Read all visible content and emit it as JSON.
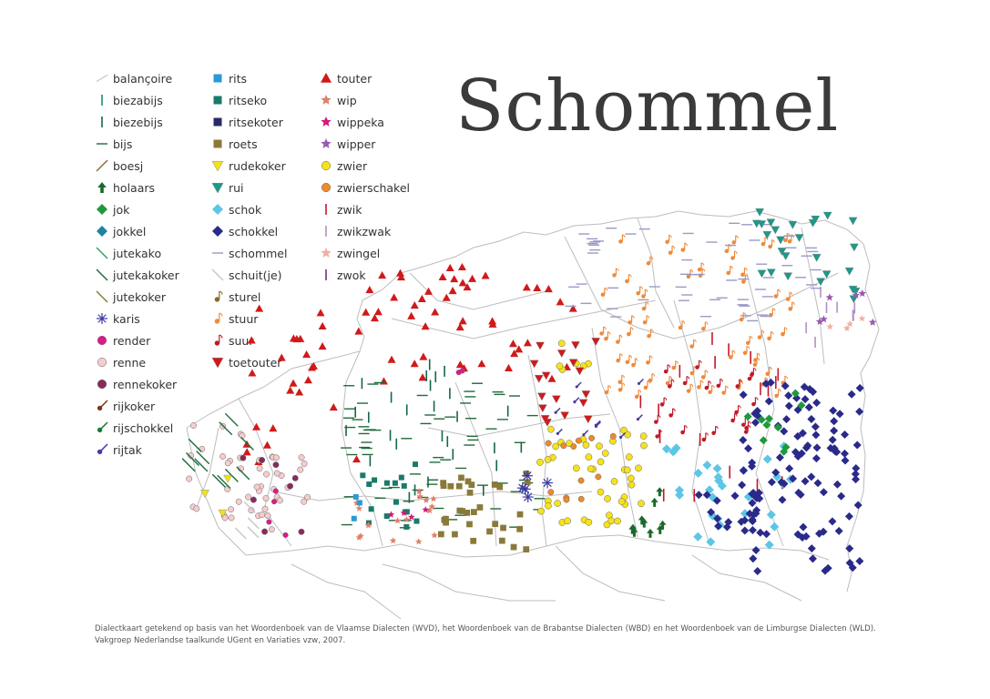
{
  "title": "Schommel",
  "legend": [
    {
      "label": "balançoire",
      "symbol": "line-light",
      "color": "#bdbdbd"
    },
    {
      "label": "biezabijs",
      "symbol": "vline",
      "color": "#1a8f6a"
    },
    {
      "label": "biezebijs",
      "symbol": "vline",
      "color": "#13664a"
    },
    {
      "label": "bijs",
      "symbol": "hline",
      "color": "#1f6b3a"
    },
    {
      "label": "boesj",
      "symbol": "diag",
      "color": "#8a6a3a"
    },
    {
      "label": "holaars",
      "symbol": "arrow-up",
      "color": "#1a6b2a"
    },
    {
      "label": "jok",
      "symbol": "diamond",
      "color": "#1f9a3a"
    },
    {
      "label": "jokkel",
      "symbol": "diamond",
      "color": "#1c84a0"
    },
    {
      "label": "jutekako",
      "symbol": "diag-r",
      "color": "#2aa060"
    },
    {
      "label": "jutekakoker",
      "symbol": "diag-r",
      "color": "#1a6b3a"
    },
    {
      "label": "jutekoker",
      "symbol": "diag-r",
      "color": "#8a7a2a"
    },
    {
      "label": "karis",
      "symbol": "asterisk",
      "color": "#3a3aa0"
    },
    {
      "label": "render",
      "symbol": "circle",
      "color": "#e0188a"
    },
    {
      "label": "renne",
      "symbol": "circle",
      "color": "#f6cccc"
    },
    {
      "label": "rennekoker",
      "symbol": "circle",
      "color": "#8a2a5a"
    },
    {
      "label": "rijkoker",
      "symbol": "stick",
      "color": "#7a3a1a"
    },
    {
      "label": "rijschokkel",
      "symbol": "stick",
      "color": "#1a7a3a"
    },
    {
      "label": "rijtak",
      "symbol": "stick",
      "color": "#4a3aa0"
    },
    {
      "label": "rits",
      "symbol": "square",
      "color": "#2a9ad6"
    },
    {
      "label": "ritseko",
      "symbol": "square",
      "color": "#1a7a6a"
    },
    {
      "label": "ritsekoter",
      "symbol": "square",
      "color": "#2a2a6a"
    },
    {
      "label": "roets",
      "symbol": "square",
      "color": "#8a7a3a"
    },
    {
      "label": "rudekoker",
      "symbol": "tri-down",
      "color": "#f2e21a"
    },
    {
      "label": "rui",
      "symbol": "tri-down",
      "color": "#1a9a8a"
    },
    {
      "label": "schok",
      "symbol": "diamond",
      "color": "#5cc6e6"
    },
    {
      "label": "schokkel",
      "symbol": "diamond",
      "color": "#2a2a8a"
    },
    {
      "label": "schommel",
      "symbol": "hline",
      "color": "#9a9ac6"
    },
    {
      "label": "schuit(je)",
      "symbol": "diag-r",
      "color": "#c6c6c6"
    },
    {
      "label": "sturel",
      "symbol": "note",
      "color": "#8a6a2a"
    },
    {
      "label": "stuur",
      "symbol": "note",
      "color": "#ee8a3a"
    },
    {
      "label": "suur",
      "symbol": "note",
      "color": "#c01a2a"
    },
    {
      "label": "toetouter",
      "symbol": "tri-down",
      "color": "#d01a1a"
    },
    {
      "label": "touter",
      "symbol": "tri-up",
      "color": "#d01a1a"
    },
    {
      "label": "wip",
      "symbol": "star",
      "color": "#e0806a"
    },
    {
      "label": "wippeka",
      "symbol": "star",
      "color": "#d01a7a"
    },
    {
      "label": "wipper",
      "symbol": "star",
      "color": "#9a5ab0"
    },
    {
      "label": "zwier",
      "symbol": "circle",
      "color": "#f6e21a"
    },
    {
      "label": "zwierschakel",
      "symbol": "circle",
      "color": "#ee8a2a"
    },
    {
      "label": "zwik",
      "symbol": "vline",
      "color": "#c01a2a"
    },
    {
      "label": "zwikzwak",
      "symbol": "vline",
      "color": "#b090c6"
    },
    {
      "label": "zwingel",
      "symbol": "star",
      "color": "#f0b0a0"
    },
    {
      "label": "zwok",
      "symbol": "vline",
      "color": "#7a2a8a"
    }
  ],
  "caption": {
    "line1": "Dialectkaart getekend op basis van het Woordenboek van de Vlaamse Dialecten (WVD), het Woordenboek van de Brabantse Dialecten (WBD) en het Woordenboek van de Limburgse Dialecten (WLD).",
    "line2": "Vakgroep Nederlandse taalkunde UGent en Variaties vzw, 2007."
  }
}
